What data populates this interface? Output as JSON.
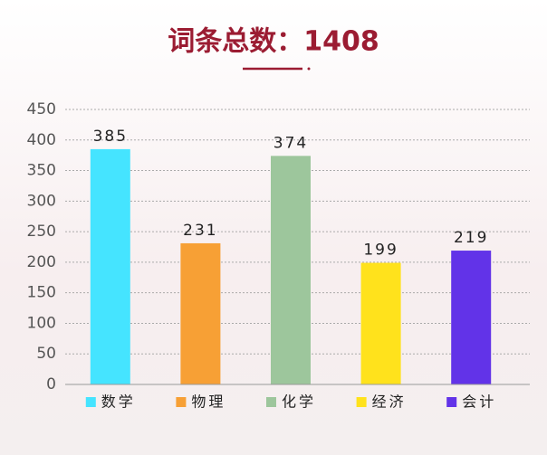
{
  "chart_data": {
    "type": "bar",
    "title": "词条总数：1408",
    "categories": [
      "数学",
      "物理",
      "化学",
      "经济",
      "会计"
    ],
    "values": [
      385,
      231,
      374,
      199,
      219
    ],
    "colors": [
      "#45e4ff",
      "#f7a035",
      "#9dc69c",
      "#ffe21c",
      "#6233e8"
    ],
    "ylim": [
      0,
      450
    ],
    "yticks": [
      0,
      50,
      100,
      150,
      200,
      250,
      300,
      350,
      400,
      450
    ],
    "grid": true
  }
}
